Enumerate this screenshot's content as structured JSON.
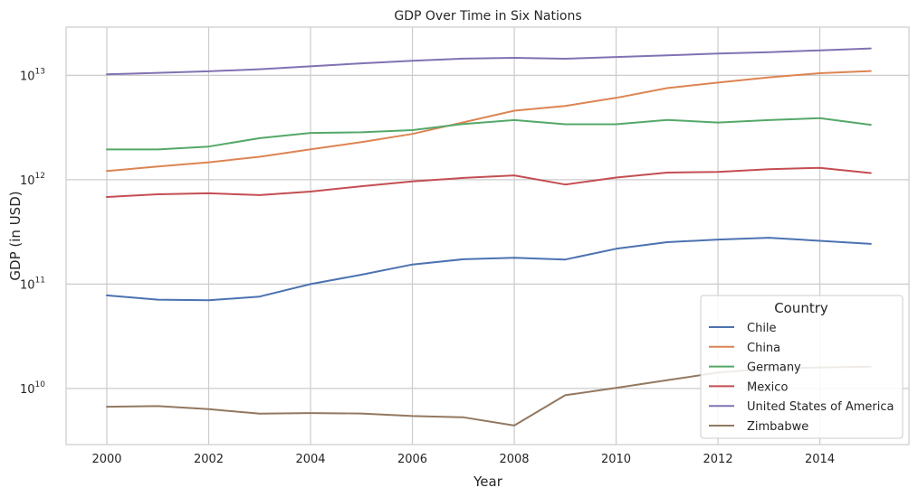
{
  "chart_data": {
    "type": "line",
    "title": "GDP Over Time in Six Nations",
    "xlabel": "Year",
    "ylabel": "GDP (in USD)",
    "yscale": "log",
    "xlim": [
      1999.2,
      2015.75
    ],
    "ylim": [
      2900000000.0,
      29000000000000.0
    ],
    "xticks": [
      2000,
      2002,
      2004,
      2006,
      2008,
      2010,
      2012,
      2014
    ],
    "yticks": [
      {
        "value": 10000000000.0,
        "exp": "10"
      },
      {
        "value": 100000000000.0,
        "exp": "11"
      },
      {
        "value": 1000000000000.0,
        "exp": "12"
      },
      {
        "value": 10000000000000.0,
        "exp": "13"
      }
    ],
    "ytick_base": "10",
    "grid": true,
    "legend": {
      "title": "Country",
      "position": "lower-right"
    },
    "x": [
      2000,
      2001,
      2002,
      2003,
      2004,
      2005,
      2006,
      2007,
      2008,
      2009,
      2010,
      2011,
      2012,
      2013,
      2014,
      2015
    ],
    "series": [
      {
        "name": "Chile",
        "color": "#4c72b0",
        "values": [
          78000000000.0,
          71000000000.0,
          70000000000.0,
          76000000000.0,
          100000000000.0,
          123000000000.0,
          154000000000.0,
          173000000000.0,
          179000000000.0,
          172000000000.0,
          218000000000.0,
          252000000000.0,
          267000000000.0,
          278000000000.0,
          260000000000.0,
          243000000000.0
        ]
      },
      {
        "name": "China",
        "color": "#dd8452",
        "values": [
          1210000000000.0,
          1340000000000.0,
          1470000000000.0,
          1660000000000.0,
          1960000000000.0,
          2290000000000.0,
          2750000000000.0,
          3550000000000.0,
          4590000000000.0,
          5100000000000.0,
          6090000000000.0,
          7550000000000.0,
          8530000000000.0,
          9570000000000.0,
          10500000000000.0,
          11000000000000.0
        ]
      },
      {
        "name": "Germany",
        "color": "#55a868",
        "values": [
          1950000000000.0,
          1950000000000.0,
          2080000000000.0,
          2500000000000.0,
          2810000000000.0,
          2850000000000.0,
          2990000000000.0,
          3420000000000.0,
          3730000000000.0,
          3400000000000.0,
          3400000000000.0,
          3740000000000.0,
          3530000000000.0,
          3730000000000.0,
          3890000000000.0,
          3360000000000.0
        ]
      },
      {
        "name": "Mexico",
        "color": "#c44e52",
        "values": [
          684000000000.0,
          725000000000.0,
          742000000000.0,
          713000000000.0,
          770000000000.0,
          866000000000.0,
          965000000000.0,
          1040000000000.0,
          1100000000000.0,
          900000000000.0,
          1050000000000.0,
          1170000000000.0,
          1190000000000.0,
          1260000000000.0,
          1300000000000.0,
          1160000000000.0
        ]
      },
      {
        "name": "United States of America",
        "color": "#8172b3",
        "values": [
          10250000000000.0,
          10580000000000.0,
          10940000000000.0,
          11460000000000.0,
          12210000000000.0,
          13040000000000.0,
          13810000000000.0,
          14450000000000.0,
          14710000000000.0,
          14440000000000.0,
          14990000000000.0,
          15540000000000.0,
          16200000000000.0,
          16690000000000.0,
          17390000000000.0,
          18120000000000.0
        ]
      },
      {
        "name": "Zimbabwe",
        "color": "#937860",
        "values": [
          6690000000.0,
          6780000000.0,
          6340000000.0,
          5730000000.0,
          5810000000.0,
          5760000000.0,
          5440000000.0,
          5290000000.0,
          4420000000.0,
          8620000000.0,
          10140000000.0,
          12000000000.0,
          14200000000.0,
          15500000000.0,
          15900000000.0,
          16200000000.0
        ]
      }
    ]
  }
}
